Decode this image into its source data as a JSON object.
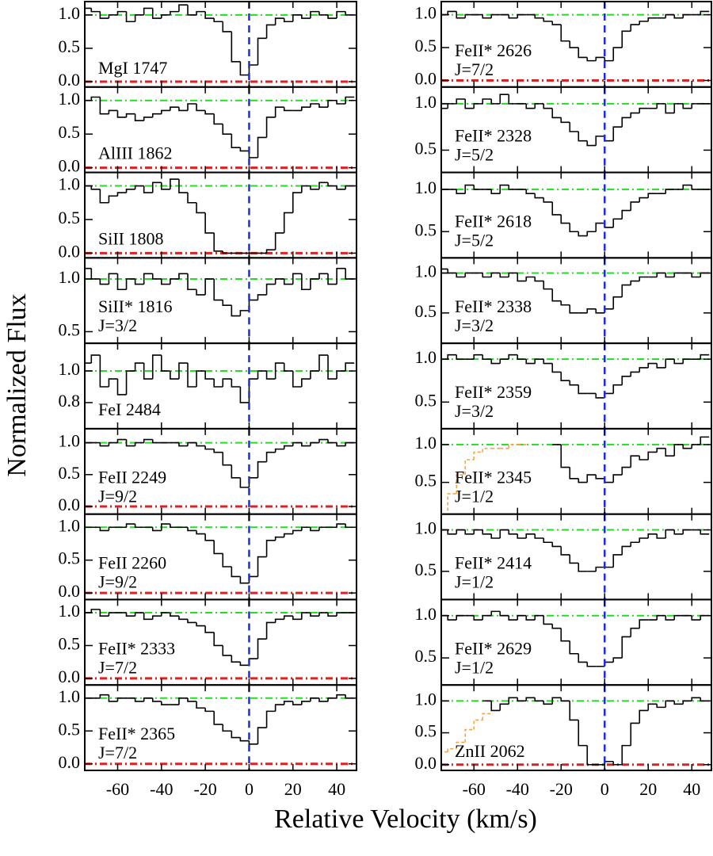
{
  "chart_data": {
    "type": "step-panels",
    "ylabel": "Normalized Flux",
    "xlabel": "Relative Velocity (km/s)",
    "xlim": [
      -75,
      49
    ],
    "xticks": [
      -60,
      -40,
      -20,
      0,
      20,
      40
    ],
    "continuum": 1,
    "continuum_color": "#22dd22",
    "zero": 0,
    "zero_color": "#dd2222",
    "reference_velocity": 0,
    "reference_color": "#1a2ee0",
    "line_color": "#000000",
    "blend_color": "#f5a442",
    "x": [
      -74,
      -70,
      -66,
      -62,
      -58,
      -54,
      -50,
      -46,
      -42,
      -38,
      -34,
      -30,
      -26,
      -22,
      -18,
      -14,
      -10,
      -6,
      -2,
      2,
      6,
      10,
      14,
      18,
      22,
      26,
      30,
      34,
      38,
      42,
      46
    ],
    "panels": [
      {
        "label": "MgI 1747",
        "ylim": [
          -0.08,
          1.2
        ],
        "yticks": [
          {
            "value": 0,
            "label": "0.0"
          },
          0.5,
          {
            "value": 1,
            "label": "1.0"
          }
        ],
        "values": [
          1.1,
          1.05,
          0.95,
          1.0,
          1.05,
          0.9,
          1.0,
          1.1,
          0.95,
          1.0,
          1.05,
          1.15,
          1.0,
          1.05,
          0.95,
          0.9,
          0.75,
          0.3,
          0.1,
          0.25,
          0.65,
          0.85,
          0.95,
          0.9,
          1.0,
          0.95,
          1.05,
          1.0,
          0.95,
          1.05,
          1.0
        ]
      },
      {
        "label": "AlIII 1862",
        "ylim": [
          -0.07,
          1.2
        ],
        "yticks": [
          {
            "value": 0,
            "label": "0.0"
          },
          0.5,
          {
            "value": 1,
            "label": "1.0"
          }
        ],
        "values": [
          1.0,
          1.05,
          0.8,
          0.85,
          0.75,
          0.8,
          0.7,
          0.75,
          0.8,
          0.85,
          0.9,
          0.85,
          0.95,
          0.85,
          0.8,
          0.65,
          0.5,
          0.3,
          0.25,
          0.15,
          0.45,
          0.75,
          0.9,
          0.85,
          0.85,
          0.9,
          0.95,
          0.9,
          1.0,
          0.95,
          1.05
        ]
      },
      {
        "label": "SiII 1808",
        "ylim": [
          -0.07,
          1.2
        ],
        "yticks": [
          {
            "value": 0,
            "label": "0.0"
          },
          0.5,
          {
            "value": 1,
            "label": "1.0"
          }
        ],
        "values": [
          1.0,
          0.95,
          0.75,
          0.85,
          0.9,
          0.95,
          1.0,
          0.9,
          1.05,
          0.95,
          1.1,
          0.9,
          0.75,
          0.6,
          0.3,
          0.03,
          0.0,
          0.0,
          0.0,
          0.0,
          0.0,
          0.05,
          0.3,
          0.6,
          0.9,
          1.0,
          0.95,
          1.05,
          1.0,
          0.95,
          1.0
        ]
      },
      {
        "label": "SiII* 1816",
        "sublabel": "J=3/2",
        "ylim": [
          0.39,
          1.2
        ],
        "yticks": [
          0.5,
          {
            "value": 1,
            "label": "1.0"
          }
        ],
        "values": [
          1.1,
          1.0,
          0.95,
          1.05,
          0.9,
          1.0,
          0.95,
          1.05,
          1.0,
          0.95,
          1.0,
          1.05,
          0.9,
          0.85,
          1.0,
          0.8,
          0.75,
          0.65,
          0.7,
          0.8,
          0.85,
          0.95,
          1.0,
          0.95,
          1.05,
          0.9,
          1.0,
          1.05,
          0.95,
          1.1,
          1.0
        ]
      },
      {
        "label": "FeI 2484",
        "ylim": [
          0.635,
          1.175
        ],
        "yticks": [
          0.8,
          {
            "value": 1,
            "label": "1.0"
          }
        ],
        "values": [
          1.05,
          1.1,
          0.9,
          0.95,
          0.85,
          1.0,
          1.05,
          0.95,
          1.1,
          1.0,
          0.95,
          1.05,
          0.9,
          1.0,
          0.95,
          0.9,
          0.95,
          0.9,
          0.8,
          0.95,
          1.0,
          0.95,
          1.05,
          1.0,
          0.9,
          0.95,
          1.0,
          1.1,
          0.95,
          1.0,
          1.05
        ]
      },
      {
        "label": "FeII 2249",
        "sublabel": "J=9/2",
        "ylim": [
          -0.12,
          1.22
        ],
        "yticks": [
          {
            "value": 0,
            "label": "0.0"
          },
          0.5,
          {
            "value": 1,
            "label": "1.0"
          }
        ],
        "values": [
          1.0,
          1.0,
          0.95,
          1.0,
          1.05,
          0.95,
          1.0,
          1.05,
          1.0,
          1.0,
          1.0,
          0.95,
          1.0,
          0.95,
          0.9,
          0.85,
          0.65,
          0.45,
          0.3,
          0.45,
          0.7,
          0.85,
          0.9,
          0.95,
          1.0,
          0.95,
          1.0,
          1.05,
          1.0,
          0.95,
          1.0
        ]
      },
      {
        "label": "FeII 2260",
        "sublabel": "J=9/2",
        "ylim": [
          -0.1,
          1.2
        ],
        "yticks": [
          {
            "value": 0,
            "label": "0.0"
          },
          0.5,
          {
            "value": 1,
            "label": "1.0"
          }
        ],
        "values": [
          1.0,
          1.0,
          0.95,
          1.0,
          1.0,
          1.05,
          1.0,
          1.0,
          0.95,
          1.05,
          1.0,
          1.0,
          0.95,
          0.9,
          0.8,
          0.6,
          0.4,
          0.25,
          0.15,
          0.25,
          0.55,
          0.8,
          0.85,
          0.9,
          0.95,
          1.0,
          0.95,
          1.0,
          1.0,
          1.05,
          1.0
        ]
      },
      {
        "label": "FeII* 2333",
        "sublabel": "J=7/2",
        "ylim": [
          -0.1,
          1.2
        ],
        "yticks": [
          {
            "value": 0,
            "label": "0.0"
          },
          0.5,
          {
            "value": 1,
            "label": "1.0"
          }
        ],
        "values": [
          1.0,
          1.05,
          0.95,
          1.0,
          1.0,
          0.95,
          1.0,
          0.9,
          0.95,
          1.0,
          0.95,
          0.9,
          0.85,
          0.8,
          0.7,
          0.5,
          0.35,
          0.25,
          0.2,
          0.3,
          0.6,
          0.85,
          0.9,
          0.95,
          0.9,
          1.0,
          0.95,
          1.0,
          0.95,
          1.0,
          1.0
        ]
      },
      {
        "label": "FeII* 2365",
        "sublabel": "J=7/2",
        "ylim": [
          -0.1,
          1.2
        ],
        "yticks": [
          {
            "value": 0,
            "label": "0.0"
          },
          0.5,
          {
            "value": 1,
            "label": "1.0"
          }
        ],
        "values": [
          1.0,
          1.0,
          1.05,
          0.95,
          1.0,
          1.0,
          0.95,
          1.0,
          0.95,
          0.9,
          0.9,
          1.0,
          0.95,
          0.85,
          0.8,
          0.6,
          0.5,
          0.4,
          0.35,
          0.3,
          0.55,
          0.8,
          0.9,
          0.95,
          0.9,
          0.95,
          1.0,
          0.95,
          1.0,
          1.05,
          1.0
        ]
      },
      {
        "label": "FeII* 2626",
        "sublabel": "J=7/2",
        "ylim": [
          -0.1,
          1.2
        ],
        "yticks": [
          {
            "value": 0,
            "label": "0.0"
          },
          0.5,
          {
            "value": 1,
            "label": "1.0"
          }
        ],
        "values": [
          1.0,
          1.05,
          0.95,
          1.0,
          1.0,
          0.95,
          1.0,
          1.0,
          0.95,
          1.0,
          1.0,
          0.95,
          0.9,
          0.85,
          0.6,
          0.5,
          0.35,
          0.3,
          0.35,
          0.3,
          0.5,
          0.75,
          0.85,
          0.9,
          0.95,
          0.95,
          1.0,
          0.95,
          1.0,
          1.0,
          1.05
        ]
      },
      {
        "label": "FeII* 2328",
        "sublabel": "J=5/2",
        "ylim": [
          0.26,
          1.18
        ],
        "yticks": [
          0.5,
          {
            "value": 1,
            "label": "1.0"
          }
        ],
        "values": [
          0.95,
          1.0,
          1.05,
          0.95,
          1.0,
          1.05,
          1.0,
          1.1,
          1.0,
          1.0,
          0.95,
          1.0,
          0.95,
          0.85,
          0.8,
          0.7,
          0.6,
          0.55,
          0.65,
          0.6,
          0.75,
          0.85,
          0.9,
          0.95,
          0.95,
          1.0,
          0.9,
          1.0,
          0.95,
          1.0,
          1.0
        ]
      },
      {
        "label": "FeII* 2618",
        "sublabel": "J=5/2",
        "ylim": [
          0.19,
          1.2
        ],
        "yticks": [
          0.5,
          {
            "value": 1,
            "label": "1.0"
          }
        ],
        "values": [
          1.0,
          1.0,
          0.95,
          1.05,
          1.0,
          1.0,
          0.95,
          1.05,
          1.0,
          1.0,
          0.95,
          0.9,
          0.85,
          0.7,
          0.6,
          0.5,
          0.45,
          0.5,
          0.6,
          0.55,
          0.65,
          0.75,
          0.85,
          0.9,
          0.95,
          0.95,
          1.0,
          1.0,
          1.05,
          1.0,
          1.0
        ]
      },
      {
        "label": "FeII* 2338",
        "sublabel": "J=3/2",
        "ylim": [
          0.12,
          1.19
        ],
        "yticks": [
          0.5,
          {
            "value": 1,
            "label": "1.0"
          }
        ],
        "values": [
          1.05,
          1.0,
          0.95,
          1.0,
          1.0,
          0.95,
          1.0,
          0.95,
          1.0,
          0.9,
          0.95,
          0.9,
          0.8,
          0.65,
          0.6,
          0.5,
          0.5,
          0.55,
          0.5,
          0.55,
          0.7,
          0.85,
          0.9,
          0.95,
          0.95,
          1.0,
          0.95,
          1.0,
          1.0,
          0.95,
          1.0
        ]
      },
      {
        "label": "FeII* 2359",
        "sublabel": "J=3/2",
        "ylim": [
          0.19,
          1.185
        ],
        "yticks": [
          0.5,
          {
            "value": 1,
            "label": "1.0"
          }
        ],
        "values": [
          1.0,
          1.05,
          1.0,
          1.0,
          1.05,
          1.0,
          0.95,
          1.0,
          1.05,
          1.0,
          0.95,
          1.0,
          0.95,
          0.85,
          0.75,
          0.7,
          0.6,
          0.6,
          0.55,
          0.6,
          0.7,
          0.8,
          0.85,
          0.9,
          0.95,
          0.9,
          1.0,
          0.95,
          1.0,
          1.0,
          1.05
        ]
      },
      {
        "label": "FeII* 2345",
        "sublabel": "J=1/2",
        "ylim": [
          0.08,
          1.21
        ],
        "yticks": [
          0.5,
          {
            "value": 1,
            "label": "1.0"
          }
        ],
        "values": [
          null,
          null,
          null,
          null,
          null,
          null,
          null,
          null,
          null,
          null,
          null,
          null,
          null,
          1.0,
          0.7,
          0.55,
          0.5,
          0.6,
          0.55,
          0.5,
          0.6,
          0.7,
          0.85,
          0.8,
          0.9,
          0.95,
          0.85,
          1.0,
          0.95,
          1.0,
          1.1
        ],
        "blend": [
          0.05,
          0.35,
          0.6,
          0.8,
          0.9,
          0.95,
          0.95,
          0.95,
          1.0,
          1.0,
          null,
          null,
          null,
          null,
          null,
          null,
          null,
          null,
          null,
          null,
          null,
          null,
          null,
          null,
          null,
          null,
          null,
          null,
          null,
          null,
          null
        ]
      },
      {
        "label": "FeII* 2414",
        "sublabel": "J=1/2",
        "ylim": [
          0.16,
          1.19
        ],
        "yticks": [
          0.5,
          {
            "value": 1,
            "label": "1.0"
          }
        ],
        "values": [
          1.0,
          0.95,
          1.0,
          0.95,
          1.0,
          0.95,
          0.9,
          1.0,
          0.95,
          0.9,
          0.95,
          0.9,
          0.85,
          0.8,
          0.7,
          0.6,
          0.5,
          0.5,
          0.55,
          0.55,
          0.7,
          0.8,
          0.85,
          0.9,
          0.95,
          0.9,
          1.0,
          0.95,
          1.0,
          1.0,
          0.95
        ]
      },
      {
        "label": "FeII* 2629",
        "sublabel": "J=1/2",
        "ylim": [
          0.18,
          1.19
        ],
        "yticks": [
          0.5,
          {
            "value": 1,
            "label": "1.0"
          }
        ],
        "values": [
          1.0,
          0.95,
          1.0,
          1.0,
          0.95,
          1.0,
          1.05,
          1.0,
          0.95,
          1.0,
          0.95,
          1.0,
          0.9,
          0.85,
          0.7,
          0.55,
          0.45,
          0.4,
          0.4,
          0.45,
          0.5,
          0.75,
          0.85,
          0.95,
          0.95,
          1.0,
          0.95,
          1.0,
          1.0,
          0.95,
          1.0
        ]
      },
      {
        "label": "ZnII 2062",
        "ylim": [
          -0.09,
          1.25
        ],
        "yticks": [
          {
            "value": 0,
            "label": "0.0"
          },
          0.5,
          {
            "value": 1,
            "label": "1.0"
          }
        ],
        "values": [
          null,
          null,
          null,
          null,
          null,
          1.0,
          0.85,
          0.95,
          1.05,
          1.0,
          1.05,
          1.0,
          0.95,
          1.05,
          1.0,
          0.7,
          0.3,
          0.0,
          0.0,
          0.05,
          0.0,
          0.3,
          0.65,
          0.85,
          0.95,
          0.9,
          1.0,
          0.95,
          1.0,
          1.05,
          1.0
        ],
        "blend": [
          0.2,
          0.25,
          0.35,
          0.55,
          0.7,
          0.8,
          null,
          null,
          null,
          null,
          null,
          null,
          null,
          null,
          null,
          null,
          null,
          null,
          null,
          null,
          null,
          null,
          null,
          null,
          null,
          null,
          null,
          null,
          null,
          null,
          null
        ]
      }
    ]
  }
}
